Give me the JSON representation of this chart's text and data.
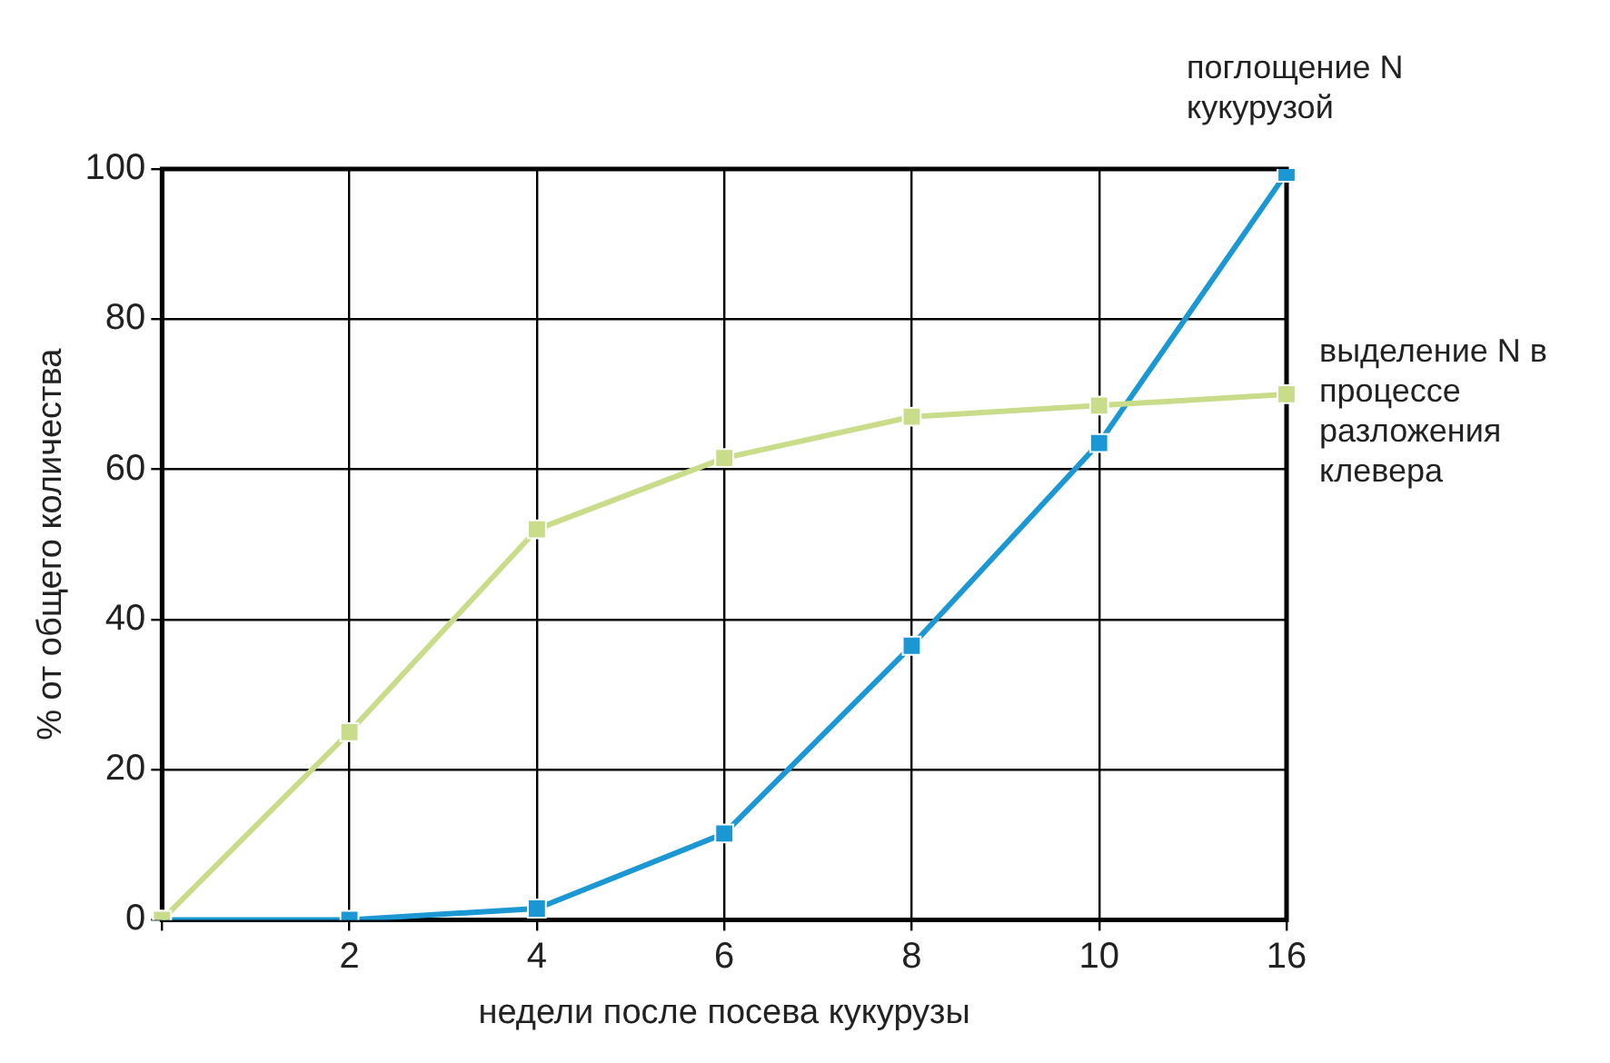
{
  "chart_data": {
    "type": "line",
    "xlabel": "недели после посева кукурузы",
    "ylabel": "% от общего количества",
    "categories": [
      null,
      "2",
      "4",
      "6",
      "8",
      "10",
      "16"
    ],
    "series": [
      {
        "name": "выделение N в процессе разложения клевера",
        "color": "#c8dc8a",
        "values": [
          0,
          25,
          52,
          61.5,
          67,
          68.5,
          70
        ]
      },
      {
        "name": "поглощение N кукурузой",
        "color": "#1b98d3",
        "values": [
          0,
          0,
          1.5,
          11.5,
          36.5,
          63.5,
          99.5
        ]
      }
    ],
    "ylim": [
      0,
      100
    ],
    "yticks": [
      0,
      20,
      40,
      60,
      80,
      100
    ],
    "grid": true,
    "legend": false,
    "marker": "square",
    "line_style": "solid"
  }
}
